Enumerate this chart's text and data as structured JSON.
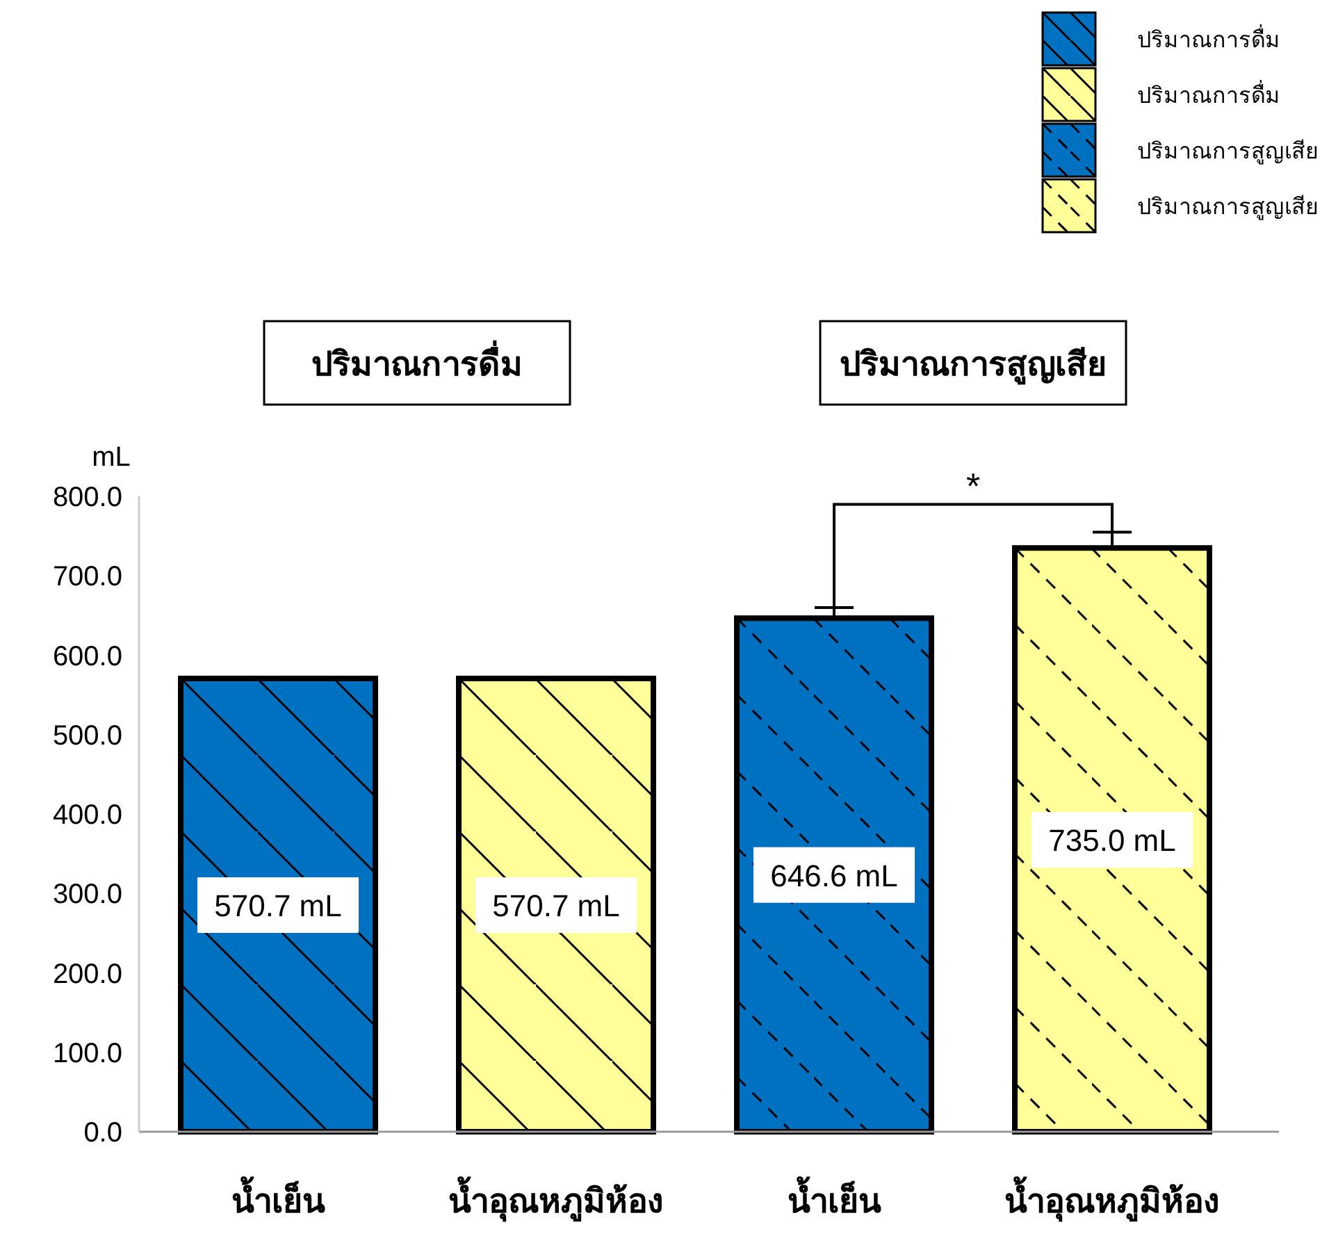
{
  "chart_data": {
    "type": "bar",
    "categories": [
      "น้ำเย็น",
      "น้ำอุณหภูมิห้อง",
      "น้ำเย็น",
      "น้ำอุณหภูมิห้อง"
    ],
    "series": [
      {
        "name": "ปริมาณการดื่ม",
        "color": "#0070c0",
        "line_style": "solid",
        "values": [
          570.7,
          null,
          null,
          null
        ],
        "value_labels": [
          "570.7 mL",
          null,
          null,
          null
        ]
      },
      {
        "name": "ปริมาณการดื่ม",
        "color": "#ffff99",
        "line_style": "solid",
        "values": [
          null,
          570.7,
          null,
          null
        ],
        "value_labels": [
          null,
          "570.7 mL",
          null,
          null
        ]
      },
      {
        "name": "ปริมาณการสูญเสีย",
        "color": "#0070c0",
        "line_style": "dashed",
        "values": [
          null,
          null,
          646.6,
          null
        ],
        "value_labels": [
          null,
          null,
          "646.6 mL",
          null
        ],
        "errors": [
          null,
          null,
          [
            646.6,
            660
          ],
          null
        ]
      },
      {
        "name": "ปริมาณการสูญเสีย",
        "color": "#ffff99",
        "line_style": "dashed",
        "values": [
          null,
          null,
          null,
          735.0
        ],
        "value_labels": [
          null,
          null,
          null,
          "735.0 mL"
        ],
        "errors": [
          null,
          null,
          null,
          [
            735.0,
            755
          ]
        ]
      }
    ],
    "ylabel": "mL",
    "ylim": [
      0,
      800
    ],
    "yticks": [
      {
        "value": 0,
        "label": "0.0"
      },
      {
        "value": 100,
        "label": "100.0"
      },
      {
        "value": 200,
        "label": "200.0"
      },
      {
        "value": 300,
        "label": "300.0"
      },
      {
        "value": 400,
        "label": "400.0"
      },
      {
        "value": 500,
        "label": "500.0"
      },
      {
        "value": 600,
        "label": "600.0"
      },
      {
        "value": 700,
        "label": "700.0"
      },
      {
        "value": 800,
        "label": "800.0"
      }
    ],
    "annotations": [
      "ปริมาณการดื่ม",
      "ปริมาณการสูญเสีย",
      "*"
    ],
    "legend": "top right",
    "grid": false
  }
}
